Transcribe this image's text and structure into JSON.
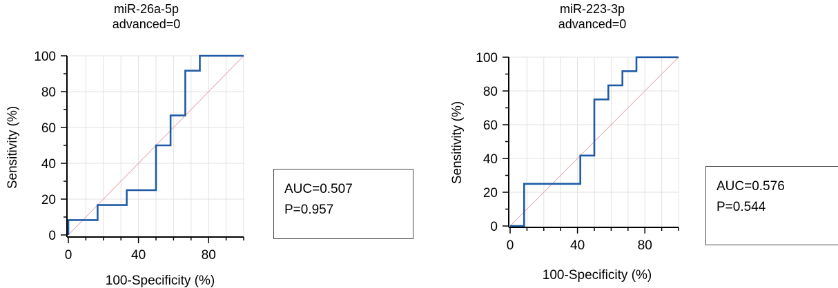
{
  "chart_data": [
    {
      "type": "line",
      "title": "miR-26a-5p",
      "subtitle": "advanced=0",
      "xlabel": "100-Specificity (%)",
      "ylabel": "Sensitivity (%)",
      "xlim": [
        0,
        100
      ],
      "ylim": [
        0,
        100
      ],
      "xticks": [
        0,
        40,
        80
      ],
      "yticks": [
        0,
        20,
        40,
        60,
        80,
        100
      ],
      "grid": true,
      "series": [
        {
          "x": [
            0,
            0,
            16.7,
            16.7,
            33.3,
            33.3,
            50,
            50,
            58.3,
            58.3,
            66.7,
            66.7,
            75,
            75,
            100
          ],
          "y": [
            0,
            8.3,
            8.3,
            16.7,
            16.7,
            25,
            25,
            50,
            50,
            66.7,
            66.7,
            91.7,
            91.7,
            100,
            100
          ],
          "color": "#1f5aa6"
        }
      ],
      "reference_line": {
        "x": [
          0,
          100
        ],
        "y": [
          0,
          100
        ],
        "color": "#e8a8b0"
      },
      "stats": {
        "auc": "AUC=0.507",
        "p": "P=0.957"
      }
    },
    {
      "type": "line",
      "title": "miR-223-3p",
      "subtitle": "advanced=0",
      "xlabel": "100-Specificity (%)",
      "ylabel": "Sensitivity (%)",
      "xlim": [
        0,
        100
      ],
      "ylim": [
        0,
        100
      ],
      "xticks": [
        0,
        40,
        80
      ],
      "yticks": [
        0,
        20,
        40,
        60,
        80,
        100
      ],
      "grid": true,
      "series": [
        {
          "x": [
            0,
            8.3,
            8.3,
            41.7,
            41.7,
            50,
            50,
            58.3,
            58.3,
            66.7,
            66.7,
            75,
            75,
            100
          ],
          "y": [
            0,
            0,
            25,
            25,
            41.7,
            41.7,
            75,
            75,
            83.3,
            83.3,
            91.7,
            91.7,
            100,
            100
          ],
          "color": "#1f5aa6"
        }
      ],
      "reference_line": {
        "x": [
          0,
          100
        ],
        "y": [
          0,
          100
        ],
        "color": "#e8a8b0"
      },
      "stats": {
        "auc": "AUC=0.576",
        "p": "P=0.544"
      }
    }
  ]
}
